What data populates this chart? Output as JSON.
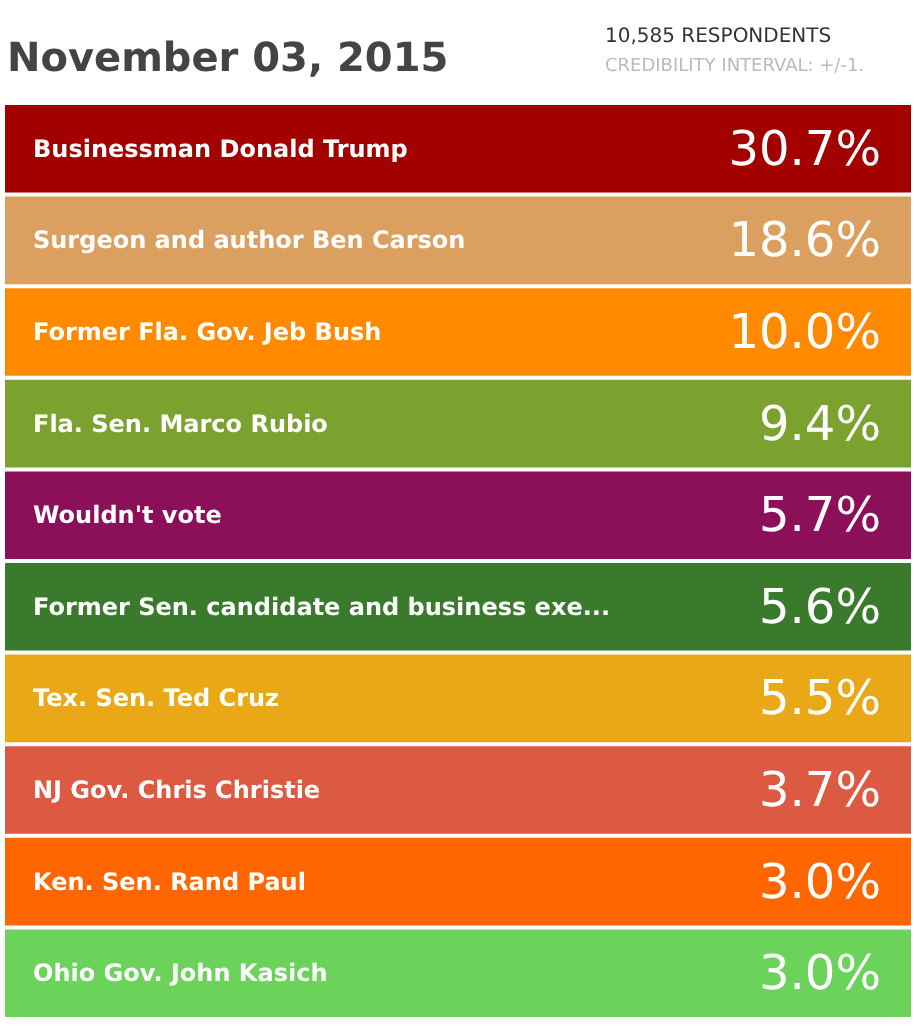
{
  "chart_data": {
    "type": "other",
    "title": "November 03, 2015",
    "subtitle": "10,585 RESPONDENTS",
    "annotations": [
      "CREDIBILITY INTERVAL: +/-1."
    ],
    "categories": [
      "Businessman Donald Trump",
      "Surgeon and author Ben Carson",
      "Former Fla. Gov. Jeb Bush",
      "Fla. Sen. Marco Rubio",
      "Wouldn't vote",
      "Former Sen. candidate and business exe...",
      "Tex. Sen. Ted Cruz",
      "NJ Gov. Chris Christie",
      "Ken. Sen. Rand Paul",
      "Ohio Gov. John Kasich"
    ],
    "values": [
      30.7,
      18.6,
      10.0,
      9.4,
      5.7,
      5.6,
      5.5,
      3.7,
      3.0,
      3.0
    ],
    "value_labels": [
      "30.7%",
      "18.6%",
      "10.0%",
      "9.4%",
      "5.7%",
      "5.6%",
      "5.5%",
      "3.7%",
      "3.0%",
      "3.0%"
    ],
    "colors": [
      "#a30000",
      "#dba060",
      "#ff8a00",
      "#7ba22e",
      "#8c0f5a",
      "#3a7a2c",
      "#eaa816",
      "#dc5a42",
      "#ff6600",
      "#6bd35a"
    ]
  }
}
